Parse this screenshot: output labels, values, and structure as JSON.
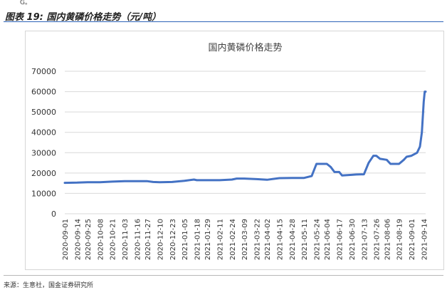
{
  "page": {
    "top_fragment": "G。",
    "caption": "图表 19:  国内黄磷价格走势（元/吨）",
    "source": "来源：生意社，国金证券研究所"
  },
  "colors": {
    "accent": "#2d63b8",
    "line": "#4472c4",
    "grid": "#d9d9d9"
  },
  "chart_data": {
    "type": "line",
    "title": "国内黄磷价格走势",
    "xlabel": "",
    "ylabel": "",
    "ylim": [
      0,
      70000
    ],
    "yticks": [
      0,
      10000,
      20000,
      30000,
      40000,
      50000,
      60000,
      70000
    ],
    "grid": true,
    "legend": "none",
    "x_tick_labels": [
      "2020-09-01",
      "2020-09-14",
      "2020-09-25",
      "2020-10-08",
      "2020-10-21",
      "2020-11-03",
      "2020-11-16",
      "2020-11-27",
      "2020-12-10",
      "2020-12-23",
      "2021-01-05",
      "2021-01-18",
      "2021-01-29",
      "2021-02-11",
      "2021-02-24",
      "2021-03-09",
      "2021-03-22",
      "2021-04-02",
      "2021-04-15",
      "2021-04-28",
      "2021-05-11",
      "2021-05-24",
      "2021-06-04",
      "2021-06-17",
      "2021-06-30",
      "2021-07-13",
      "2021-07-26",
      "2021-08-06",
      "2021-08-19",
      "2021-09-01",
      "2021-09-14"
    ],
    "series": [
      {
        "values": [
          {
            "x": "2020-09-01",
            "y": 15200
          },
          {
            "x": "2020-09-14",
            "y": 15300
          },
          {
            "x": "2020-09-25",
            "y": 15500
          },
          {
            "x": "2020-10-08",
            "y": 15500
          },
          {
            "x": "2020-10-21",
            "y": 15800
          },
          {
            "x": "2020-11-03",
            "y": 16000
          },
          {
            "x": "2020-11-16",
            "y": 16000
          },
          {
            "x": "2020-11-27",
            "y": 16000
          },
          {
            "x": "2020-12-03",
            "y": 15600
          },
          {
            "x": "2020-12-10",
            "y": 15500
          },
          {
            "x": "2020-12-23",
            "y": 15600
          },
          {
            "x": "2021-01-05",
            "y": 16200
          },
          {
            "x": "2021-01-15",
            "y": 16800
          },
          {
            "x": "2021-01-18",
            "y": 16500
          },
          {
            "x": "2021-01-29",
            "y": 16500
          },
          {
            "x": "2021-02-11",
            "y": 16500
          },
          {
            "x": "2021-02-24",
            "y": 16800
          },
          {
            "x": "2021-03-01",
            "y": 17300
          },
          {
            "x": "2021-03-09",
            "y": 17300
          },
          {
            "x": "2021-03-22",
            "y": 17000
          },
          {
            "x": "2021-04-02",
            "y": 16700
          },
          {
            "x": "2021-04-15",
            "y": 17500
          },
          {
            "x": "2021-04-28",
            "y": 17600
          },
          {
            "x": "2021-05-11",
            "y": 17600
          },
          {
            "x": "2021-05-19",
            "y": 18500
          },
          {
            "x": "2021-05-24",
            "y": 24500
          },
          {
            "x": "2021-06-04",
            "y": 24500
          },
          {
            "x": "2021-06-08",
            "y": 23000
          },
          {
            "x": "2021-06-12",
            "y": 20500
          },
          {
            "x": "2021-06-17",
            "y": 20500
          },
          {
            "x": "2021-06-20",
            "y": 18800
          },
          {
            "x": "2021-06-30",
            "y": 19100
          },
          {
            "x": "2021-07-05",
            "y": 19300
          },
          {
            "x": "2021-07-13",
            "y": 19400
          },
          {
            "x": "2021-07-18",
            "y": 25000
          },
          {
            "x": "2021-07-23",
            "y": 28500
          },
          {
            "x": "2021-07-26",
            "y": 28500
          },
          {
            "x": "2021-07-30",
            "y": 27000
          },
          {
            "x": "2021-08-06",
            "y": 26500
          },
          {
            "x": "2021-08-10",
            "y": 24500
          },
          {
            "x": "2021-08-19",
            "y": 24500
          },
          {
            "x": "2021-08-24",
            "y": 26500
          },
          {
            "x": "2021-08-27",
            "y": 28000
          },
          {
            "x": "2021-09-01",
            "y": 28500
          },
          {
            "x": "2021-09-07",
            "y": 30000
          },
          {
            "x": "2021-09-10",
            "y": 33000
          },
          {
            "x": "2021-09-12",
            "y": 40000
          },
          {
            "x": "2021-09-14",
            "y": 55000
          },
          {
            "x": "2021-09-15",
            "y": 60000
          },
          {
            "x": "2021-09-16",
            "y": 60000
          }
        ]
      }
    ]
  }
}
